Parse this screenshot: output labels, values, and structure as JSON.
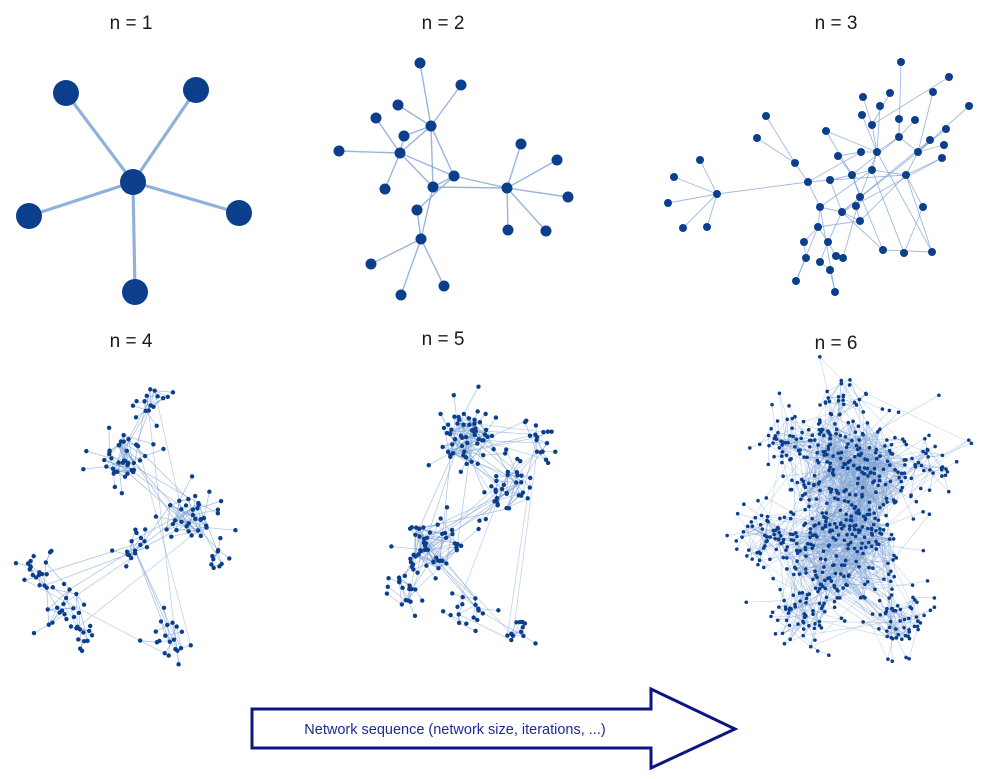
{
  "panels": [
    {
      "title": "n = 1"
    },
    {
      "title": "n = 2"
    },
    {
      "title": "n = 3"
    },
    {
      "title": "n = 4"
    },
    {
      "title": "n = 5"
    },
    {
      "title": "n = 6"
    }
  ],
  "arrow": {
    "label": "Network sequence (network size, iterations, ...)"
  },
  "colors": {
    "node": "#0b3f8c",
    "edge": "#7fa3d4",
    "arrow_border": "#0d1680",
    "arrow_text": "#1c2a9a",
    "title_text": "#1a1a1a"
  }
}
